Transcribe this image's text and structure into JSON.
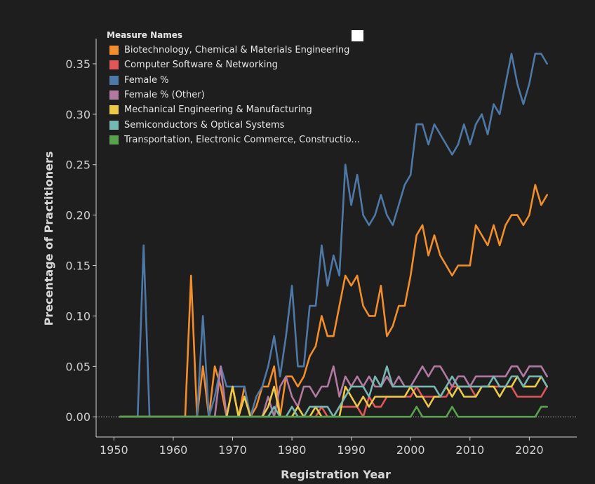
{
  "legend": {
    "title": "Measure Names"
  },
  "chart_data": {
    "type": "line",
    "xlabel": "Registration Year",
    "ylabel": "Precentage of Practitioners",
    "xlim": [
      1947,
      2028
    ],
    "ylim": [
      -0.02,
      0.375
    ],
    "x_ticks": [
      1950,
      1960,
      1970,
      1980,
      1990,
      2000,
      2010,
      2020
    ],
    "y_ticks": [
      0.0,
      0.05,
      0.1,
      0.15,
      0.2,
      0.25,
      0.3,
      0.35
    ],
    "y_tick_labels": [
      "0.00",
      "0.05",
      "0.10",
      "0.15",
      "0.20",
      "0.25",
      "0.30",
      "0.35"
    ],
    "grid": false,
    "zero_line": true,
    "legend_position": "top-left",
    "x": [
      1951,
      1952,
      1953,
      1954,
      1955,
      1956,
      1957,
      1958,
      1959,
      1960,
      1961,
      1962,
      1963,
      1964,
      1965,
      1966,
      1967,
      1968,
      1969,
      1970,
      1971,
      1972,
      1973,
      1974,
      1975,
      1976,
      1977,
      1978,
      1979,
      1980,
      1981,
      1982,
      1983,
      1984,
      1985,
      1986,
      1987,
      1988,
      1989,
      1990,
      1991,
      1992,
      1993,
      1994,
      1995,
      1996,
      1997,
      1998,
      1999,
      2000,
      2001,
      2002,
      2003,
      2004,
      2005,
      2006,
      2007,
      2008,
      2009,
      2010,
      2011,
      2012,
      2013,
      2014,
      2015,
      2016,
      2017,
      2018,
      2019,
      2020,
      2021,
      2022,
      2023
    ],
    "series": [
      {
        "name": "Biotechnology, Chemical & Materials Engineering",
        "color": "#f28e2b",
        "values": [
          0,
          0,
          0,
          0,
          0,
          0,
          0,
          0,
          0,
          0,
          0,
          0,
          0.14,
          0,
          0.05,
          0,
          0.05,
          0.03,
          0,
          0.03,
          0,
          0.03,
          0,
          0.01,
          0.03,
          0.03,
          0.05,
          0,
          0.04,
          0.04,
          0.03,
          0.04,
          0.06,
          0.07,
          0.1,
          0.08,
          0.08,
          0.11,
          0.14,
          0.13,
          0.14,
          0.11,
          0.1,
          0.1,
          0.13,
          0.08,
          0.09,
          0.11,
          0.11,
          0.14,
          0.18,
          0.19,
          0.16,
          0.18,
          0.16,
          0.15,
          0.14,
          0.15,
          0.15,
          0.15,
          0.19,
          0.18,
          0.17,
          0.19,
          0.17,
          0.19,
          0.2,
          0.2,
          0.19,
          0.2,
          0.23,
          0.21,
          0.22
        ]
      },
      {
        "name": "Computer Software & Networking",
        "color": "#e15759",
        "values": [
          0,
          0,
          0,
          0,
          0,
          0,
          0,
          0,
          0,
          0,
          0,
          0,
          0,
          0,
          0,
          0,
          0,
          0,
          0,
          0,
          0,
          0,
          0,
          0,
          0,
          0,
          0,
          0,
          0,
          0,
          0,
          0,
          0,
          0,
          0.01,
          0,
          0,
          0.01,
          0.01,
          0.01,
          0.01,
          0,
          0.02,
          0.01,
          0.01,
          0.02,
          0.02,
          0.02,
          0.02,
          0.02,
          0.03,
          0.02,
          0.02,
          0.02,
          0.02,
          0.02,
          0.03,
          0.03,
          0.03,
          0.03,
          0.02,
          0.03,
          0.03,
          0.03,
          0.03,
          0.03,
          0.03,
          0.02,
          0.02,
          0.02,
          0.02,
          0.02,
          0.03
        ]
      },
      {
        "name": "Female %",
        "color": "#4e79a7",
        "values": [
          0,
          0,
          0,
          0,
          0.17,
          0,
          0,
          0,
          0,
          0,
          0,
          0,
          0,
          0,
          0.1,
          0,
          0.02,
          0.05,
          0.03,
          0.03,
          0.03,
          0.03,
          0,
          0.02,
          0.03,
          0.05,
          0.08,
          0.04,
          0.08,
          0.13,
          0.05,
          0.05,
          0.11,
          0.11,
          0.17,
          0.13,
          0.16,
          0.14,
          0.25,
          0.21,
          0.24,
          0.2,
          0.19,
          0.2,
          0.22,
          0.2,
          0.19,
          0.21,
          0.23,
          0.24,
          0.29,
          0.29,
          0.27,
          0.29,
          0.28,
          0.27,
          0.26,
          0.27,
          0.29,
          0.27,
          0.29,
          0.3,
          0.28,
          0.31,
          0.3,
          0.33,
          0.36,
          0.33,
          0.31,
          0.33,
          0.36,
          0.36,
          0.35
        ]
      },
      {
        "name": "Female % (Other)",
        "color": "#b07aa1",
        "values": [
          0,
          0,
          0,
          0,
          0,
          0,
          0,
          0,
          0,
          0,
          0,
          0,
          0,
          0,
          0,
          0,
          0,
          0.05,
          0,
          0,
          0,
          0,
          0,
          0,
          0,
          0.02,
          0,
          0.03,
          0.04,
          0.02,
          0.01,
          0.03,
          0.03,
          0.02,
          0.03,
          0.03,
          0.05,
          0.02,
          0.04,
          0.03,
          0.04,
          0.03,
          0.04,
          0.03,
          0.03,
          0.04,
          0.03,
          0.04,
          0.03,
          0.03,
          0.04,
          0.05,
          0.04,
          0.05,
          0.05,
          0.04,
          0.03,
          0.04,
          0.04,
          0.03,
          0.04,
          0.04,
          0.04,
          0.04,
          0.04,
          0.04,
          0.05,
          0.05,
          0.04,
          0.05,
          0.05,
          0.05,
          0.04
        ]
      },
      {
        "name": "Mechanical Engineering & Manufacturing",
        "color": "#edc948",
        "values": [
          0,
          0,
          0,
          0,
          0,
          0,
          0,
          0,
          0,
          0,
          0,
          0,
          0,
          0,
          0,
          0,
          0,
          0,
          0,
          0.03,
          0,
          0.02,
          0,
          0,
          0,
          0.01,
          0.03,
          0,
          0,
          0,
          0.01,
          0,
          0,
          0.01,
          0,
          0,
          0,
          0,
          0.03,
          0.02,
          0.01,
          0.02,
          0.01,
          0.02,
          0.02,
          0.02,
          0.02,
          0.02,
          0.02,
          0.03,
          0.02,
          0.02,
          0.01,
          0.02,
          0.02,
          0.03,
          0.02,
          0.03,
          0.02,
          0.02,
          0.02,
          0.03,
          0.03,
          0.03,
          0.02,
          0.03,
          0.03,
          0.04,
          0.03,
          0.03,
          0.03,
          0.04,
          0.03
        ]
      },
      {
        "name": "Semiconductors & Optical Systems",
        "color": "#76b7b2",
        "values": [
          0,
          0,
          0,
          0,
          0,
          0,
          0,
          0,
          0,
          0,
          0,
          0,
          0,
          0,
          0,
          0,
          0,
          0,
          0,
          0,
          0,
          0,
          0,
          0,
          0,
          0,
          0.01,
          0,
          0,
          0.01,
          0,
          0,
          0.01,
          0.01,
          0.01,
          0.01,
          0,
          0.01,
          0.02,
          0.03,
          0.03,
          0.03,
          0.02,
          0.04,
          0.03,
          0.05,
          0.03,
          0.03,
          0.03,
          0.03,
          0.03,
          0.03,
          0.03,
          0.03,
          0.02,
          0.03,
          0.04,
          0.03,
          0.03,
          0.03,
          0.03,
          0.03,
          0.03,
          0.04,
          0.03,
          0.03,
          0.04,
          0.04,
          0.03,
          0.04,
          0.04,
          0.04,
          0.03
        ]
      },
      {
        "name": "Transportation, Electronic Commerce, Constructio...",
        "color": "#59a14f",
        "values": [
          0,
          0,
          0,
          0,
          0,
          0,
          0,
          0,
          0,
          0,
          0,
          0,
          0,
          0,
          0,
          0,
          0,
          0,
          0,
          0,
          0,
          0,
          0,
          0,
          0,
          0,
          0,
          0,
          0,
          0,
          0,
          0,
          0,
          0,
          0,
          0,
          0,
          0,
          0,
          0,
          0,
          0,
          0,
          0,
          0,
          0,
          0,
          0,
          0,
          0,
          0.01,
          0,
          0,
          0,
          0,
          0,
          0.01,
          0,
          0,
          0,
          0,
          0,
          0,
          0,
          0,
          0,
          0,
          0,
          0,
          0,
          0,
          0.01,
          0.01
        ]
      }
    ]
  }
}
